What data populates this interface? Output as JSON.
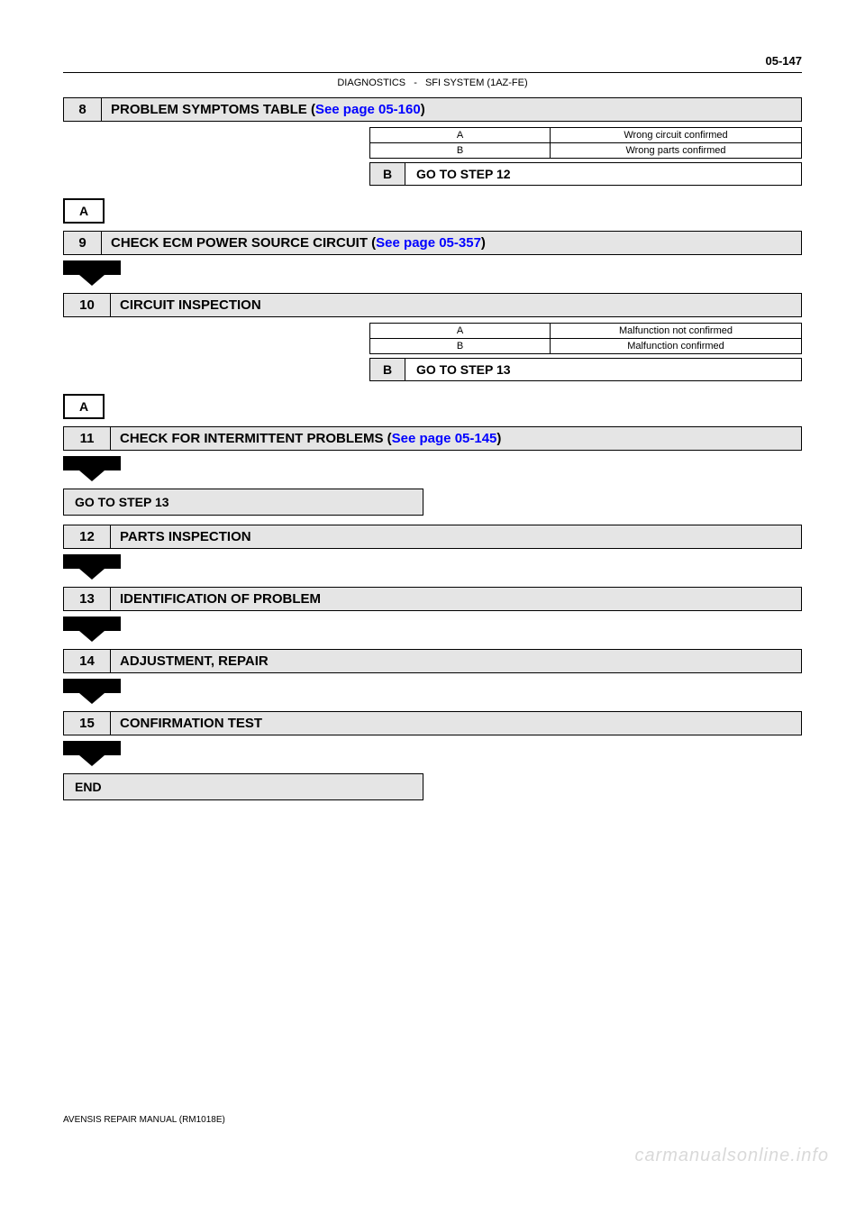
{
  "page_number": "05-147",
  "header": {
    "left": "DIAGNOSTICS",
    "dash": "-",
    "right": "SFI SYSTEM (1AZ-FE)"
  },
  "step8": {
    "num": "8",
    "title_prefix": "PROBLEM SYMPTOMS TABLE (",
    "title_link": "See page 05-160",
    "title_suffix": ")",
    "results": [
      {
        "key": "A",
        "text": "Wrong circuit confirmed"
      },
      {
        "key": "B",
        "text": "Wrong parts confirmed"
      }
    ],
    "goto": {
      "label": "B",
      "text": "GO TO STEP 12"
    },
    "branch": "A"
  },
  "step9": {
    "num": "9",
    "title_prefix": "CHECK ECM POWER SOURCE CIRCUIT (",
    "title_link": "See page 05-357",
    "title_suffix": ")"
  },
  "step10": {
    "num": "10",
    "title": "CIRCUIT INSPECTION",
    "results": [
      {
        "key": "A",
        "text": "Malfunction not confirmed"
      },
      {
        "key": "B",
        "text": "Malfunction confirmed"
      }
    ],
    "goto": {
      "label": "B",
      "text": "GO TO STEP 13"
    },
    "branch": "A"
  },
  "step11": {
    "num": "11",
    "title_prefix": "CHECK FOR INTERMITTENT PROBLEMS (",
    "title_link": "See page 05-145",
    "title_suffix": ")",
    "action": "GO TO STEP 13"
  },
  "step12": {
    "num": "12",
    "title": "PARTS INSPECTION"
  },
  "step13": {
    "num": "13",
    "title": "IDENTIFICATION OF PROBLEM"
  },
  "step14": {
    "num": "14",
    "title": "ADJUSTMENT, REPAIR"
  },
  "step15": {
    "num": "15",
    "title": "CONFIRMATION TEST"
  },
  "end": "END",
  "footer": "AVENSIS REPAIR MANUAL   (RM1018E)",
  "watermark": "carmanualsonline.info",
  "colors": {
    "bar_bg": "#e5e5e5",
    "link": "#0000ff",
    "watermark": "#d9d9d9"
  }
}
